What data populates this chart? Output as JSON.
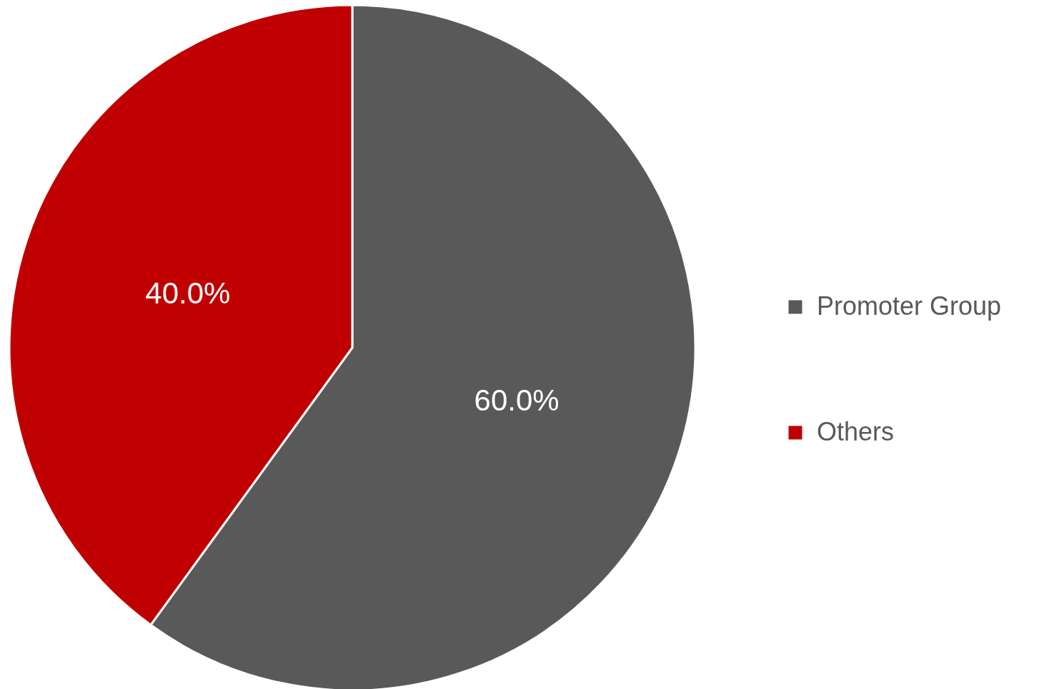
{
  "chart_data": {
    "type": "pie",
    "categories": [
      "Promoter Group",
      "Others"
    ],
    "values": [
      60,
      40
    ],
    "colors": [
      "#595959",
      "#c00000"
    ],
    "value_labels": [
      "60.0%",
      "40.0%"
    ],
    "legend": "right"
  }
}
